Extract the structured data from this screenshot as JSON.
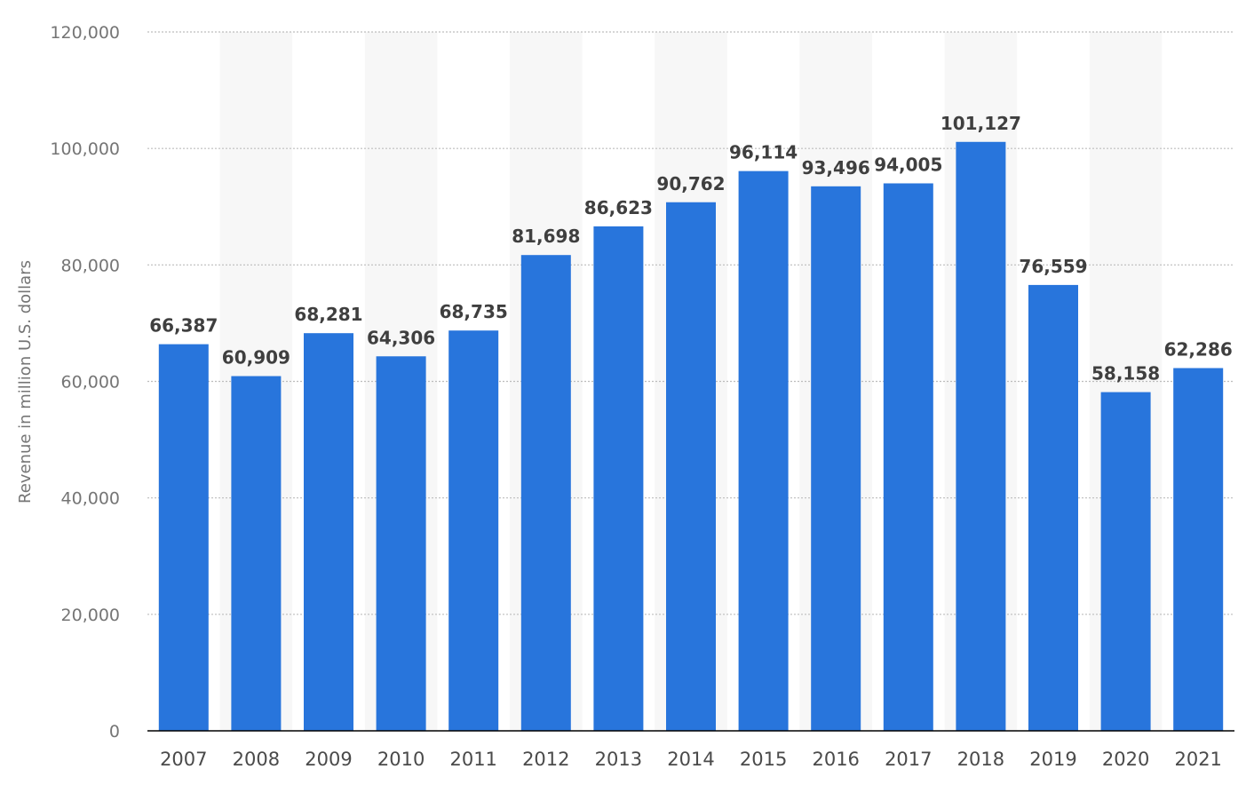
{
  "chart_data": {
    "type": "bar",
    "title": "",
    "xlabel": "",
    "ylabel": "Revenue in million U.S. dollars",
    "categories": [
      "2007",
      "2008",
      "2009",
      "2010",
      "2011",
      "2012",
      "2013",
      "2014",
      "2015",
      "2016",
      "2017",
      "2018",
      "2019",
      "2020",
      "2021"
    ],
    "values": [
      66387,
      60909,
      68281,
      64306,
      68735,
      81698,
      86623,
      90762,
      96114,
      93496,
      94005,
      101127,
      76559,
      58158,
      62286
    ],
    "value_labels": [
      "66,387",
      "60,909",
      "68,281",
      "64,306",
      "68,735",
      "81,698",
      "86,623",
      "90,762",
      "96,114",
      "93,496",
      "94,005",
      "101,127",
      "76,559",
      "58,158",
      "62,286"
    ],
    "ylim": [
      0,
      120000
    ],
    "yticks": [
      0,
      20000,
      40000,
      60000,
      80000,
      100000,
      120000
    ],
    "ytick_labels": [
      "0",
      "20,000",
      "40,000",
      "60,000",
      "80,000",
      "100,000",
      "120,000"
    ],
    "grid": true,
    "bar_color": "#2875dc",
    "band_color": "#f7f7f7",
    "grid_color": "#bdbdbd",
    "axis_color": "#000000"
  }
}
